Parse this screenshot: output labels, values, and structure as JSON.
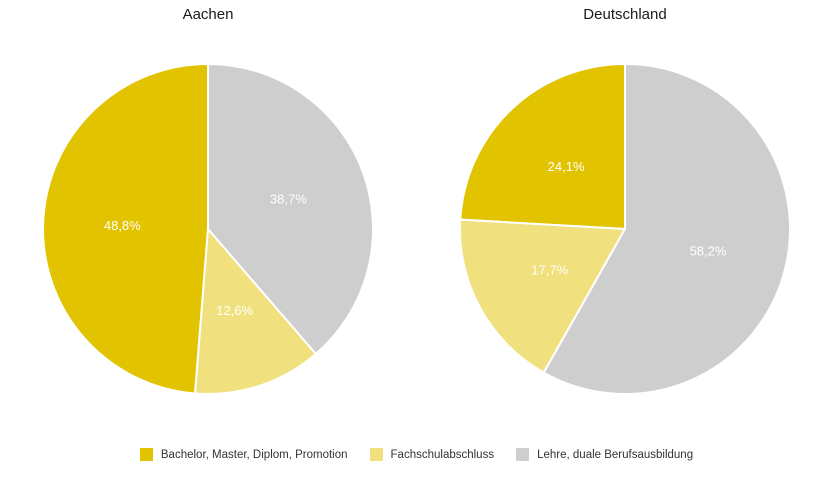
{
  "chart_data": [
    {
      "type": "pie",
      "title": "Aachen",
      "categories": [
        "Bachelor, Master, Diplom, Promotion",
        "Fachschulabschluss",
        "Lehre, duale Berufsausbildung"
      ],
      "values": [
        48.8,
        12.6,
        38.7
      ],
      "labels": [
        "48,8%",
        "12,6%",
        "38,7%"
      ],
      "colors": [
        "#e2c300",
        "#f0e17e",
        "#cecece"
      ],
      "start_angle_deg": 0,
      "direction": "counterclockwise",
      "label_radius_fraction": 0.52,
      "legend_position": "bottom"
    },
    {
      "type": "pie",
      "title": "Deutschland",
      "categories": [
        "Bachelor, Master, Diplom, Promotion",
        "Fachschulabschluss",
        "Lehre, duale Berufsausbildung"
      ],
      "values": [
        24.1,
        17.7,
        58.2
      ],
      "labels": [
        "24,1%",
        "17,7%",
        "58,2%"
      ],
      "colors": [
        "#e2c300",
        "#f0e17e",
        "#cecece"
      ],
      "start_angle_deg": 0,
      "direction": "counterclockwise",
      "label_radius_fraction": 0.52,
      "legend_position": "bottom"
    }
  ],
  "legend": {
    "items": [
      {
        "label": "Bachelor, Master, Diplom, Promotion",
        "color": "#e2c300"
      },
      {
        "label": "Fachschulabschluss",
        "color": "#f0e17e"
      },
      {
        "label": "Lehre, duale Berufsausbildung",
        "color": "#cecece"
      }
    ]
  },
  "style": {
    "background": "#ffffff",
    "slice_border_color": "#ffffff",
    "slice_border_width": 2,
    "label_text_color": "#ffffff",
    "title_color": "#1a1a1a",
    "legend_text_color": "#333333"
  }
}
